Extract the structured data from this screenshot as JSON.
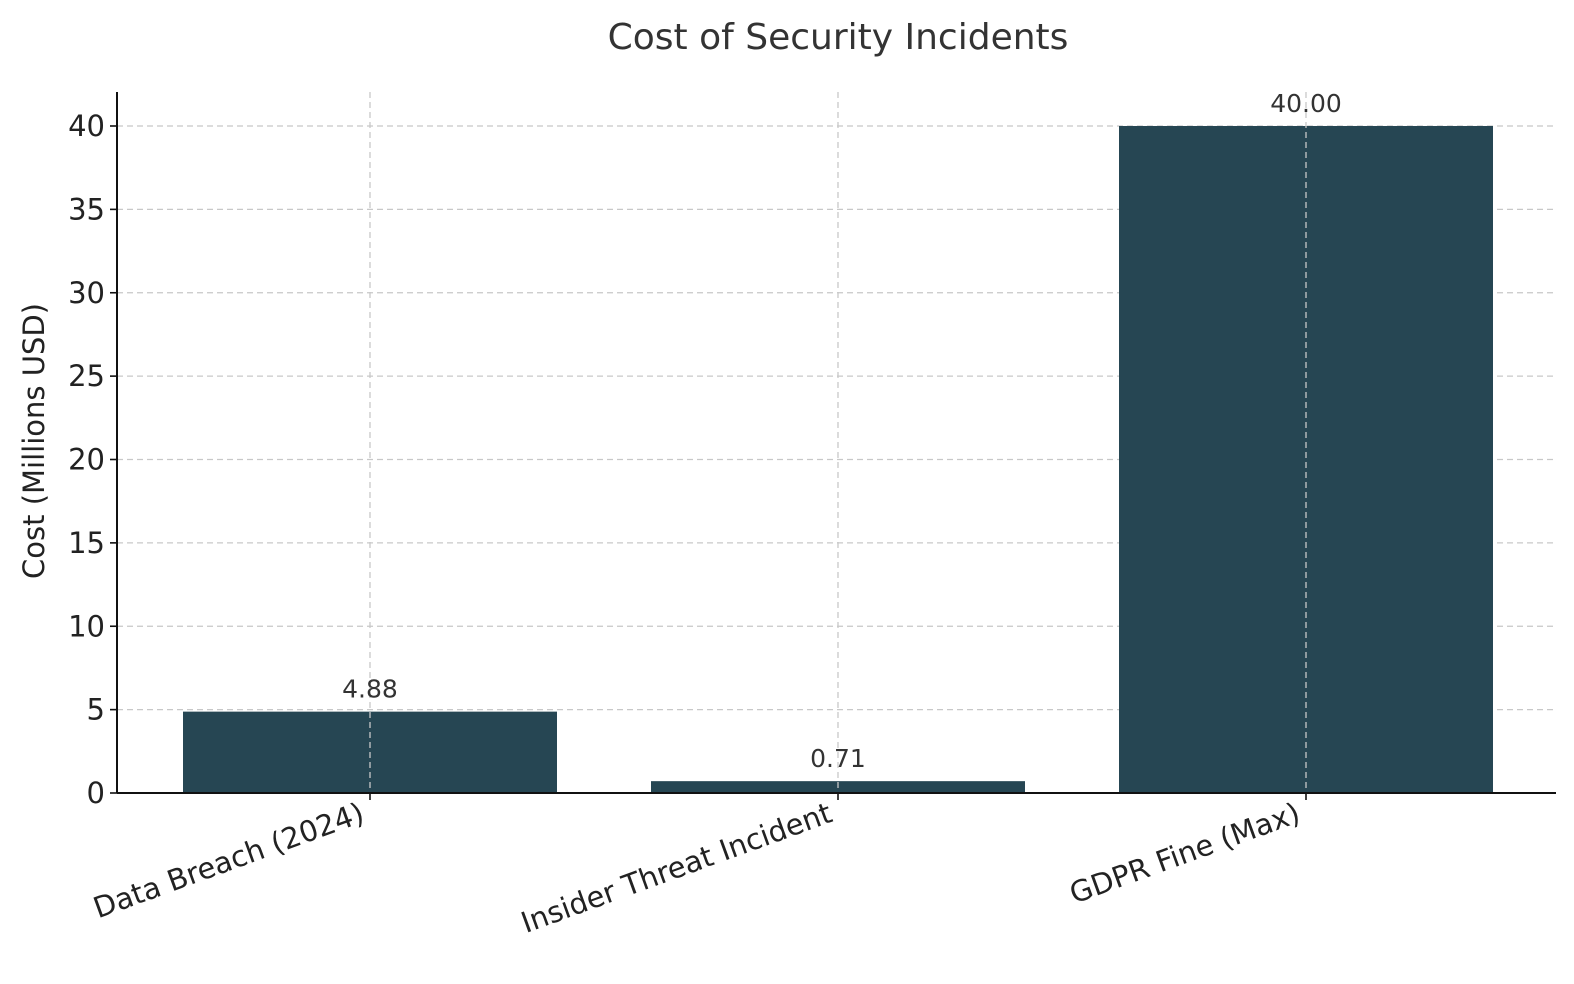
{
  "chart_data": {
    "type": "bar",
    "title": "Cost of Security Incidents",
    "xlabel": "",
    "ylabel": "Cost (Millions USD)",
    "categories": [
      "Data Breach (2024)",
      "Insider Threat Incident",
      "GDPR Fine (Max)"
    ],
    "values": [
      4.88,
      0.71,
      40.0
    ],
    "value_labels": [
      "4.88",
      "0.71",
      "40.00"
    ],
    "ylim": [
      0,
      42
    ],
    "yticks": [
      0,
      5,
      10,
      15,
      20,
      25,
      30,
      35,
      40
    ],
    "grid": true,
    "bar_color": "#264653"
  }
}
